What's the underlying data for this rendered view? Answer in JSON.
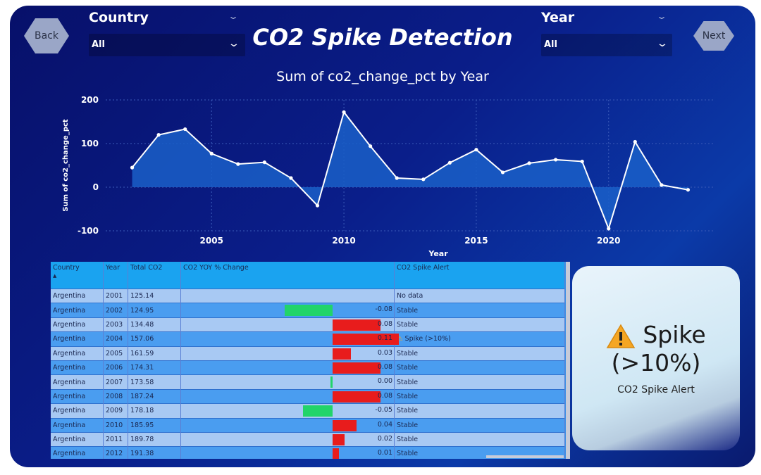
{
  "nav": {
    "back_label": "Back",
    "next_label": "Next"
  },
  "filters": {
    "country": {
      "label": "Country",
      "value": "All"
    },
    "year": {
      "label": "Year",
      "value": "All"
    }
  },
  "page_title": "CO2 Spike Detection",
  "chart_data": {
    "type": "area",
    "title": "Sum of co2_change_pct by Year",
    "xlabel": "Year",
    "ylabel": "Sum of co2_change_pct",
    "x": [
      2002,
      2003,
      2004,
      2005,
      2006,
      2007,
      2008,
      2009,
      2010,
      2011,
      2012,
      2013,
      2014,
      2015,
      2016,
      2017,
      2018,
      2019,
      2020,
      2021,
      2022,
      2023
    ],
    "values": [
      45,
      120,
      133,
      77,
      53,
      57,
      21,
      -42,
      172,
      94,
      21,
      18,
      56,
      86,
      34,
      55,
      63,
      59,
      -95,
      104,
      5,
      -6
    ],
    "ylim": [
      -100,
      200
    ],
    "yticks": [
      "200",
      "100",
      "0",
      "-100"
    ],
    "xticks": [
      "2005",
      "2010",
      "2015",
      "2020"
    ],
    "colors": {
      "line": "#ffffff",
      "fill": "#1a5fc8"
    }
  },
  "table": {
    "headers": [
      "Country",
      "Year",
      "Total CO2",
      "CO2 YOY % Change",
      "CO2 Spike Alert"
    ],
    "rows": [
      {
        "country": "Argentina",
        "year": "2001",
        "total": "125.14",
        "change": null,
        "label": "",
        "alert": "No data"
      },
      {
        "country": "Argentina",
        "year": "2002",
        "total": "124.95",
        "change": -0.08,
        "label": "-0.08",
        "alert": "Stable"
      },
      {
        "country": "Argentina",
        "year": "2003",
        "total": "134.48",
        "change": 0.08,
        "label": "0.08",
        "alert": "Stable"
      },
      {
        "country": "Argentina",
        "year": "2004",
        "total": "157.06",
        "change": 0.11,
        "label": "0.11",
        "alert": "Spike (>10%)"
      },
      {
        "country": "Argentina",
        "year": "2005",
        "total": "161.59",
        "change": 0.03,
        "label": "0.03",
        "alert": "Stable"
      },
      {
        "country": "Argentina",
        "year": "2006",
        "total": "174.31",
        "change": 0.08,
        "label": "0.08",
        "alert": "Stable"
      },
      {
        "country": "Argentina",
        "year": "2007",
        "total": "173.58",
        "change": -0.004,
        "label": "0.00",
        "alert": "Stable"
      },
      {
        "country": "Argentina",
        "year": "2008",
        "total": "187.24",
        "change": 0.08,
        "label": "0.08",
        "alert": "Stable"
      },
      {
        "country": "Argentina",
        "year": "2009",
        "total": "178.18",
        "change": -0.05,
        "label": "-0.05",
        "alert": "Stable"
      },
      {
        "country": "Argentina",
        "year": "2010",
        "total": "185.95",
        "change": 0.04,
        "label": "0.04",
        "alert": "Stable"
      },
      {
        "country": "Argentina",
        "year": "2011",
        "total": "189.78",
        "change": 0.02,
        "label": "0.02",
        "alert": "Stable"
      },
      {
        "country": "Argentina",
        "year": "2012",
        "total": "191.38",
        "change": 0.01,
        "label": "0.01",
        "alert": "Stable"
      }
    ],
    "colors": {
      "positive": "#e81c1c",
      "negative": "#22d46a"
    }
  },
  "card": {
    "main_value": "Spike (>10%)",
    "main_line1": "Spike",
    "main_line2": "(>10%)",
    "caption": "CO2 Spike Alert",
    "icon": "warning-icon"
  }
}
